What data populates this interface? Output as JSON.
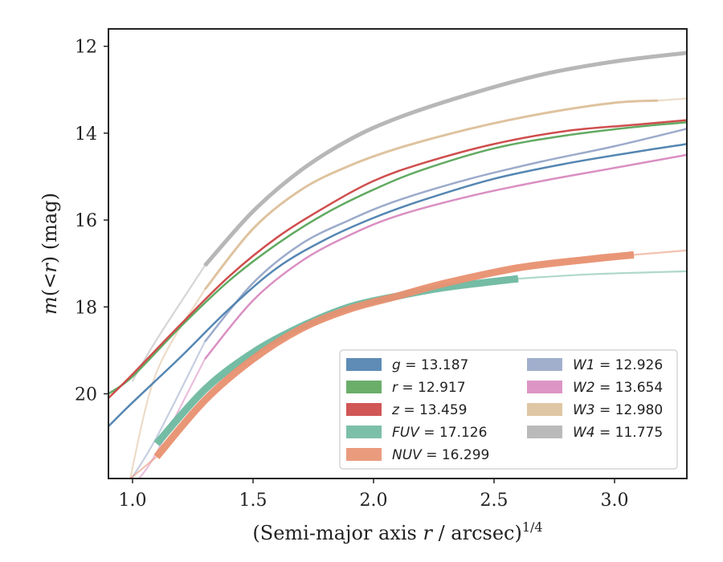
{
  "chart_data": {
    "type": "line",
    "xlabel_main": "(Semi-major axis ",
    "xlabel_var": "r",
    "xlabel_rest": " / arcsec)",
    "xlabel_sup": "1/4",
    "ylabel_main": "m",
    "ylabel_paren": "(<",
    "ylabel_var": "r",
    "ylabel_rest": ") (mag)",
    "xlim": [
      0.9,
      3.3
    ],
    "ylim": [
      21.95,
      11.6
    ],
    "y_inverted": true,
    "xticks": [
      1.0,
      1.5,
      2.0,
      2.5,
      3.0
    ],
    "yticks": [
      12,
      14,
      16,
      18,
      20
    ],
    "xtick_labels": [
      "1.0",
      "1.5",
      "2.0",
      "2.5",
      "3.0"
    ],
    "ytick_labels": [
      "12",
      "14",
      "16",
      "18",
      "20"
    ],
    "legend_location": "lower-right",
    "grid": false,
    "series": [
      {
        "name": "g",
        "label": "g = 13.187",
        "color": "#4c7fae",
        "total": 13.187,
        "faint_before": 0.9,
        "faint_after": 3.3,
        "width": 2.5,
        "points": [
          [
            0.9,
            20.75
          ],
          [
            1.0,
            20.2
          ],
          [
            1.2,
            19.15
          ],
          [
            1.4,
            18.05
          ],
          [
            1.6,
            17.1
          ],
          [
            1.8,
            16.45
          ],
          [
            2.0,
            15.95
          ],
          [
            2.2,
            15.55
          ],
          [
            2.5,
            15.05
          ],
          [
            2.8,
            14.7
          ],
          [
            3.1,
            14.42
          ],
          [
            3.3,
            14.25
          ]
        ]
      },
      {
        "name": "r",
        "label": "r = 12.917",
        "color": "#5aa55a",
        "total": 12.917,
        "faint_before": 0.9,
        "faint_after": 3.3,
        "width": 2.5,
        "points": [
          [
            0.9,
            20.0
          ],
          [
            1.0,
            19.6
          ],
          [
            1.2,
            18.45
          ],
          [
            1.4,
            17.4
          ],
          [
            1.6,
            16.55
          ],
          [
            1.8,
            15.85
          ],
          [
            2.0,
            15.3
          ],
          [
            2.2,
            14.85
          ],
          [
            2.5,
            14.35
          ],
          [
            2.8,
            14.05
          ],
          [
            3.1,
            13.85
          ],
          [
            3.3,
            13.75
          ]
        ]
      },
      {
        "name": "z",
        "label": "z = 13.459",
        "color": "#cc4444",
        "total": 13.459,
        "faint_before": 0.9,
        "faint_after": 3.3,
        "width": 2.5,
        "points": [
          [
            0.9,
            20.1
          ],
          [
            1.0,
            19.55
          ],
          [
            1.2,
            18.4
          ],
          [
            1.4,
            17.3
          ],
          [
            1.6,
            16.4
          ],
          [
            1.8,
            15.7
          ],
          [
            2.0,
            15.1
          ],
          [
            2.2,
            14.7
          ],
          [
            2.5,
            14.25
          ],
          [
            2.8,
            13.95
          ],
          [
            3.1,
            13.8
          ],
          [
            3.3,
            13.7
          ]
        ]
      },
      {
        "name": "FUV",
        "label": "FUV = 17.126",
        "color": "#6eb8a0",
        "total": 17.126,
        "faint_before": 1.1,
        "faint_after": 2.6,
        "width": 9,
        "points": [
          [
            1.1,
            21.15
          ],
          [
            1.3,
            19.9
          ],
          [
            1.5,
            19.05
          ],
          [
            1.7,
            18.45
          ],
          [
            1.9,
            18.0
          ],
          [
            2.1,
            17.75
          ],
          [
            2.3,
            17.55
          ],
          [
            2.6,
            17.35
          ],
          [
            2.9,
            17.25
          ],
          [
            3.3,
            17.18
          ]
        ]
      },
      {
        "name": "NUV",
        "label": "NUV = 16.299",
        "color": "#e89070",
        "total": 16.299,
        "faint_before": 1.1,
        "faint_after": 3.08,
        "width": 9,
        "points": [
          [
            0.98,
            22.0
          ],
          [
            1.1,
            21.45
          ],
          [
            1.3,
            20.15
          ],
          [
            1.5,
            19.2
          ],
          [
            1.7,
            18.5
          ],
          [
            1.9,
            18.05
          ],
          [
            2.1,
            17.75
          ],
          [
            2.3,
            17.45
          ],
          [
            2.6,
            17.1
          ],
          [
            2.9,
            16.9
          ],
          [
            3.08,
            16.8
          ],
          [
            3.3,
            16.7
          ]
        ]
      },
      {
        "name": "W1",
        "label": "W1 = 12.926",
        "color": "#97a6c8",
        "total": 12.926,
        "faint_before": 1.3,
        "faint_after": 3.3,
        "width": 2.5,
        "points": [
          [
            0.99,
            22.0
          ],
          [
            1.1,
            21.0
          ],
          [
            1.3,
            18.8
          ],
          [
            1.5,
            17.45
          ],
          [
            1.7,
            16.55
          ],
          [
            1.9,
            16.0
          ],
          [
            2.1,
            15.55
          ],
          [
            2.4,
            15.05
          ],
          [
            2.7,
            14.65
          ],
          [
            3.0,
            14.3
          ],
          [
            3.3,
            13.9
          ]
        ]
      },
      {
        "name": "W2",
        "label": "W2 = 13.654",
        "color": "#d889bf",
        "total": 13.654,
        "faint_before": 1.3,
        "faint_after": 3.3,
        "width": 2.5,
        "points": [
          [
            1.02,
            22.0
          ],
          [
            1.1,
            21.35
          ],
          [
            1.3,
            19.2
          ],
          [
            1.5,
            17.85
          ],
          [
            1.7,
            16.95
          ],
          [
            1.9,
            16.35
          ],
          [
            2.1,
            15.9
          ],
          [
            2.4,
            15.45
          ],
          [
            2.7,
            15.1
          ],
          [
            3.0,
            14.8
          ],
          [
            3.3,
            14.5
          ]
        ]
      },
      {
        "name": "W3",
        "label": "W3 = 12.980",
        "color": "#dcc09a",
        "total": 12.98,
        "faint_before": 1.3,
        "faint_after": 3.18,
        "width": 3,
        "points": [
          [
            0.99,
            21.95
          ],
          [
            1.1,
            19.5
          ],
          [
            1.3,
            17.6
          ],
          [
            1.5,
            16.2
          ],
          [
            1.7,
            15.3
          ],
          [
            1.9,
            14.75
          ],
          [
            2.1,
            14.35
          ],
          [
            2.4,
            13.9
          ],
          [
            2.7,
            13.55
          ],
          [
            3.0,
            13.3
          ],
          [
            3.18,
            13.25
          ],
          [
            3.3,
            13.2
          ]
        ]
      },
      {
        "name": "W4",
        "label": "W4 = 11.775",
        "color": "#b3b3b3",
        "total": 11.775,
        "faint_before": 1.3,
        "faint_after": 3.3,
        "width": 5,
        "points": [
          [
            1.0,
            19.7
          ],
          [
            1.1,
            18.75
          ],
          [
            1.3,
            17.05
          ],
          [
            1.5,
            15.8
          ],
          [
            1.7,
            14.85
          ],
          [
            1.9,
            14.15
          ],
          [
            2.1,
            13.65
          ],
          [
            2.4,
            13.1
          ],
          [
            2.7,
            12.65
          ],
          [
            3.0,
            12.35
          ],
          [
            3.3,
            12.15
          ]
        ]
      }
    ]
  }
}
